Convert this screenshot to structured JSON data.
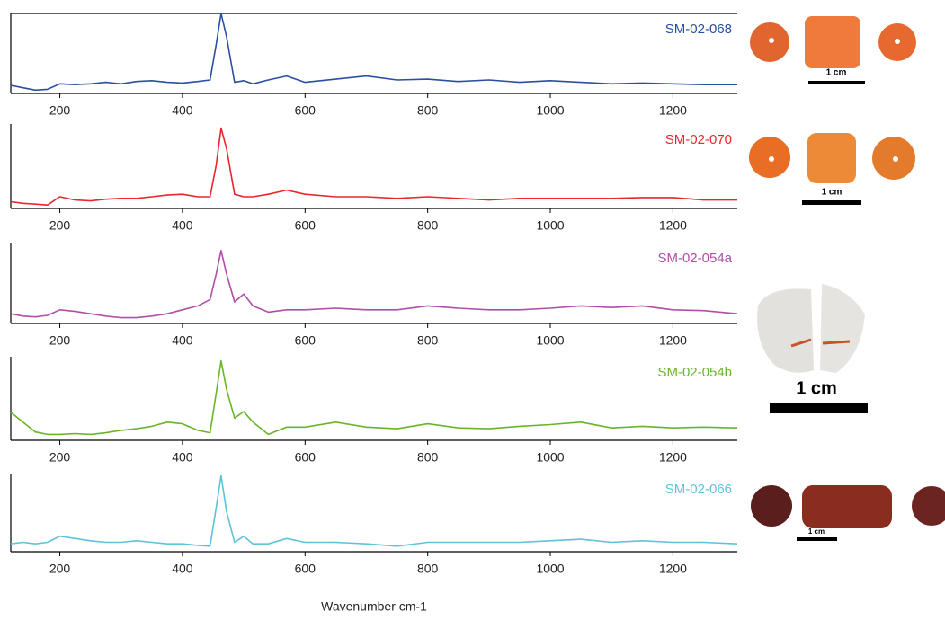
{
  "chart_data": [
    {
      "type": "line",
      "x": [
        120,
        140,
        160,
        180,
        200,
        225,
        250,
        275,
        300,
        325,
        350,
        375,
        400,
        425,
        445,
        455,
        463,
        472,
        485,
        500,
        515,
        540,
        570,
        600,
        650,
        700,
        750,
        800,
        850,
        900,
        950,
        1000,
        1050,
        1100,
        1150,
        1200,
        1250,
        1305
      ],
      "series": [
        {
          "name": "SM-02-068",
          "color": "#2b4fa0",
          "values": [
            0.08,
            0.05,
            0.02,
            0.03,
            0.1,
            0.09,
            0.1,
            0.12,
            0.1,
            0.13,
            0.14,
            0.12,
            0.11,
            0.13,
            0.15,
            0.6,
            1.0,
            0.7,
            0.12,
            0.14,
            0.1,
            0.15,
            0.2,
            0.12,
            0.16,
            0.2,
            0.15,
            0.16,
            0.13,
            0.15,
            0.12,
            0.14,
            0.12,
            0.1,
            0.11,
            0.1,
            0.09,
            0.09
          ]
        }
      ],
      "xlim": [
        120,
        1305
      ],
      "ylim": [
        0,
        1
      ],
      "xticks": [
        200,
        400,
        600,
        800,
        1000,
        1200
      ]
    },
    {
      "type": "line",
      "x": [
        120,
        140,
        160,
        180,
        200,
        225,
        250,
        275,
        300,
        325,
        350,
        375,
        400,
        425,
        445,
        455,
        463,
        472,
        485,
        500,
        515,
        540,
        570,
        600,
        650,
        700,
        750,
        800,
        850,
        900,
        950,
        1000,
        1050,
        1100,
        1150,
        1200,
        1250,
        1305
      ],
      "series": [
        {
          "name": "SM-02-070",
          "color": "#e8262b",
          "values": [
            0.06,
            0.04,
            0.03,
            0.02,
            0.12,
            0.08,
            0.07,
            0.09,
            0.1,
            0.1,
            0.12,
            0.14,
            0.15,
            0.12,
            0.12,
            0.5,
            0.95,
            0.7,
            0.15,
            0.12,
            0.12,
            0.15,
            0.2,
            0.15,
            0.12,
            0.12,
            0.1,
            0.12,
            0.1,
            0.08,
            0.1,
            0.1,
            0.1,
            0.1,
            0.11,
            0.11,
            0.08,
            0.08
          ]
        }
      ],
      "xlim": [
        120,
        1305
      ],
      "ylim": [
        0,
        1
      ],
      "xticks": [
        200,
        400,
        600,
        800,
        1000,
        1200
      ]
    },
    {
      "type": "line",
      "x": [
        120,
        140,
        160,
        180,
        200,
        225,
        250,
        275,
        300,
        325,
        350,
        375,
        400,
        425,
        445,
        455,
        463,
        472,
        485,
        500,
        515,
        540,
        570,
        600,
        650,
        700,
        750,
        800,
        850,
        900,
        950,
        1000,
        1050,
        1100,
        1150,
        1200,
        1250,
        1305
      ],
      "series": [
        {
          "name": "SM-02-054a",
          "color": "#b04fa8",
          "values": [
            0.1,
            0.07,
            0.06,
            0.08,
            0.15,
            0.13,
            0.1,
            0.07,
            0.05,
            0.05,
            0.07,
            0.1,
            0.15,
            0.2,
            0.28,
            0.6,
            0.9,
            0.6,
            0.25,
            0.35,
            0.2,
            0.12,
            0.15,
            0.15,
            0.17,
            0.15,
            0.15,
            0.2,
            0.17,
            0.15,
            0.15,
            0.17,
            0.2,
            0.18,
            0.2,
            0.15,
            0.14,
            0.1
          ]
        }
      ],
      "xlim": [
        120,
        1305
      ],
      "ylim": [
        0,
        1
      ],
      "xticks": [
        200,
        400,
        600,
        800,
        1000,
        1200
      ]
    },
    {
      "type": "line",
      "x": [
        120,
        140,
        160,
        180,
        200,
        225,
        250,
        275,
        300,
        325,
        350,
        375,
        400,
        425,
        445,
        455,
        463,
        472,
        485,
        500,
        515,
        540,
        570,
        600,
        650,
        700,
        750,
        800,
        850,
        900,
        950,
        1000,
        1050,
        1100,
        1150,
        1200,
        1250,
        1305
      ],
      "series": [
        {
          "name": "SM-02-054b",
          "color": "#6ab42a",
          "values": [
            0.32,
            0.2,
            0.08,
            0.05,
            0.05,
            0.06,
            0.05,
            0.07,
            0.1,
            0.12,
            0.15,
            0.2,
            0.18,
            0.1,
            0.07,
            0.55,
            0.95,
            0.6,
            0.25,
            0.33,
            0.2,
            0.05,
            0.14,
            0.14,
            0.2,
            0.14,
            0.12,
            0.18,
            0.13,
            0.12,
            0.15,
            0.17,
            0.2,
            0.13,
            0.15,
            0.13,
            0.14,
            0.13
          ]
        }
      ],
      "xlim": [
        120,
        1305
      ],
      "ylim": [
        0,
        1
      ],
      "xticks": [
        200,
        400,
        600,
        800,
        1000,
        1200
      ]
    },
    {
      "type": "line",
      "x": [
        120,
        140,
        160,
        180,
        200,
        225,
        250,
        275,
        300,
        325,
        350,
        375,
        400,
        425,
        445,
        455,
        463,
        472,
        485,
        500,
        515,
        540,
        570,
        600,
        650,
        700,
        750,
        800,
        850,
        900,
        950,
        1000,
        1050,
        1100,
        1150,
        1200,
        1250,
        1305
      ],
      "series": [
        {
          "name": "SM-02-066",
          "color": "#5ec3d8",
          "values": [
            0.08,
            0.1,
            0.08,
            0.1,
            0.18,
            0.15,
            0.12,
            0.1,
            0.1,
            0.12,
            0.1,
            0.08,
            0.08,
            0.06,
            0.05,
            0.55,
            0.97,
            0.5,
            0.1,
            0.18,
            0.08,
            0.08,
            0.15,
            0.1,
            0.1,
            0.08,
            0.05,
            0.1,
            0.1,
            0.1,
            0.1,
            0.12,
            0.14,
            0.1,
            0.12,
            0.1,
            0.1,
            0.08
          ]
        }
      ],
      "xlim": [
        120,
        1305
      ],
      "ylim": [
        0,
        1
      ],
      "xticks": [
        200,
        400,
        600,
        800,
        1000,
        1200
      ],
      "xlabel": "Wavenumber cm-1"
    }
  ],
  "photos": [
    {
      "scale_label": "1 cm"
    },
    {
      "scale_label": "1 cm"
    },
    {
      "scale_label": "1 cm"
    },
    {
      "scale_label": "1 cm"
    }
  ]
}
